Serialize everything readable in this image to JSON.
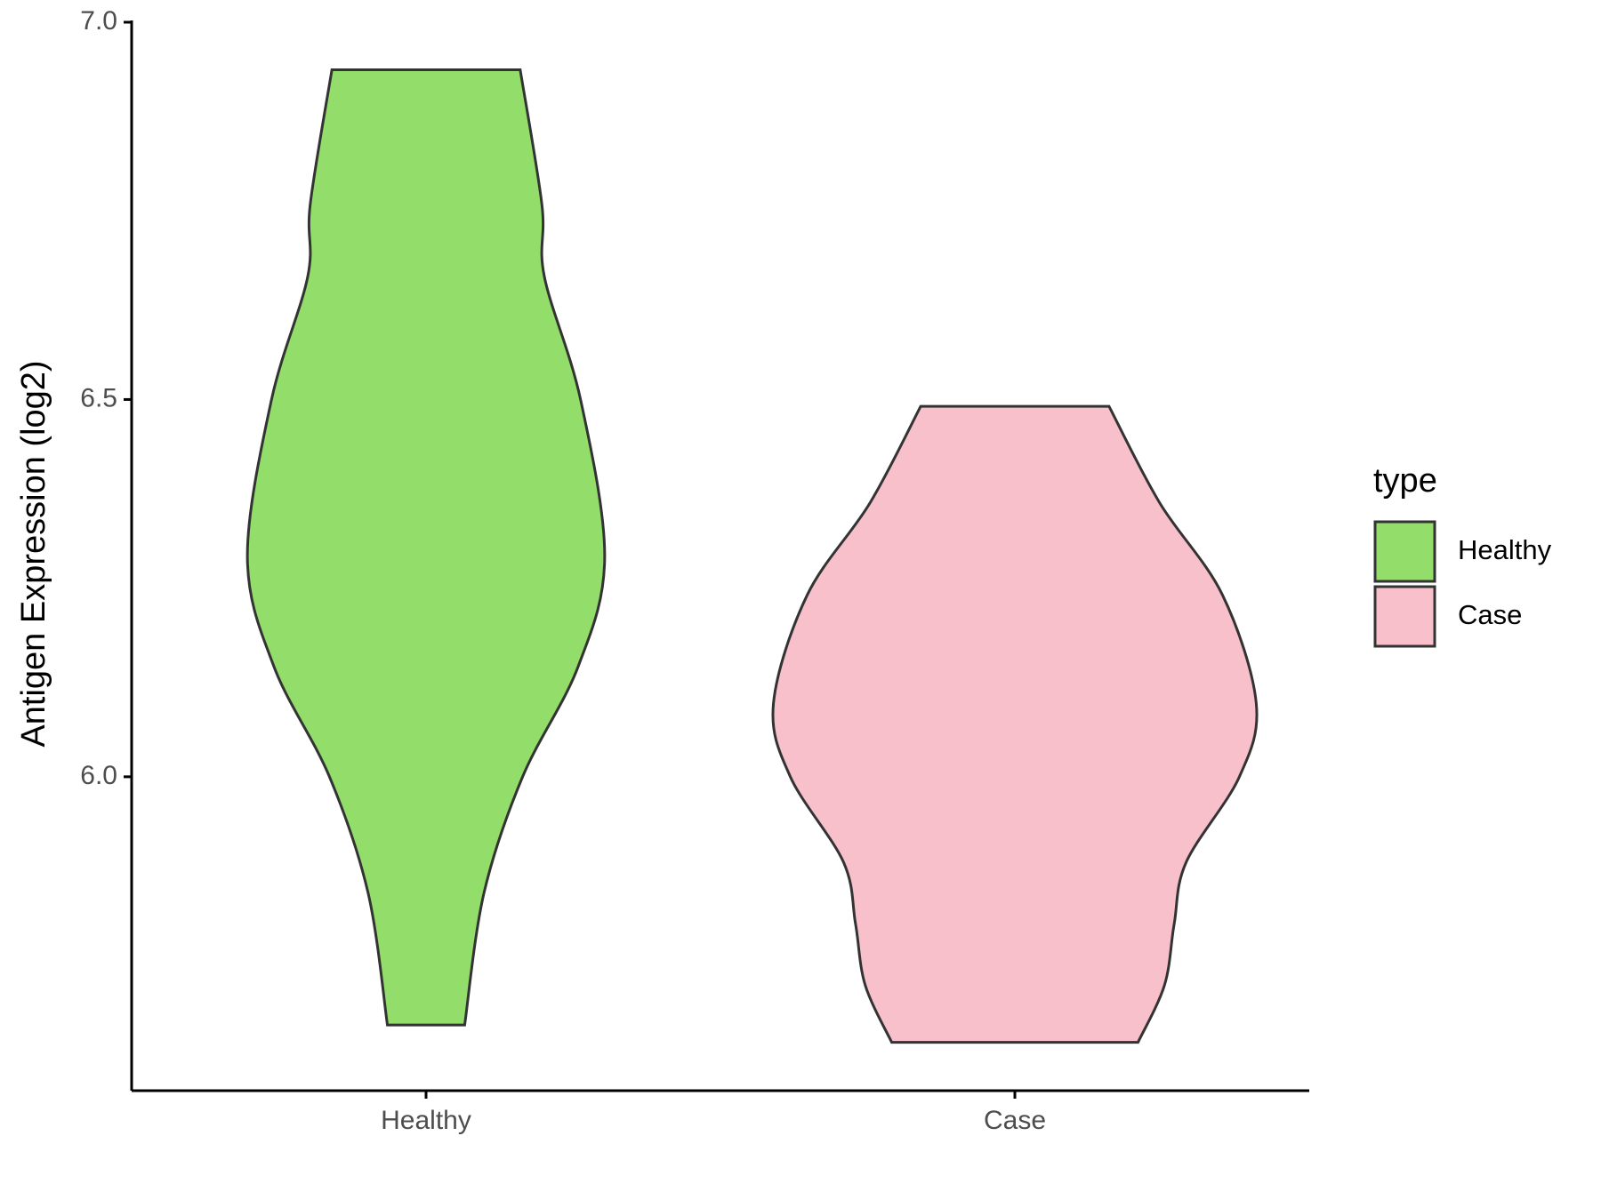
{
  "chart_data": {
    "type": "violin",
    "y_label": "Antigen Expression (log2)",
    "legend_title": "type",
    "categories": [
      "Healthy",
      "Case"
    ],
    "series": [
      {
        "name": "Healthy",
        "color": "#93dd6a",
        "y": [
          6.937,
          6.758,
          6.663,
          6.5,
          6.291,
          6.146,
          6.0,
          5.846,
          5.671
        ],
        "width": [
          0.39,
          0.48,
          0.49,
          0.64,
          0.74,
          0.63,
          0.4,
          0.24,
          0.16
        ]
      },
      {
        "name": "Case",
        "color": "#f8c0cb",
        "y": [
          6.491,
          6.363,
          6.241,
          6.097,
          6.0,
          5.887,
          5.805,
          5.724,
          5.648
        ],
        "width": [
          0.39,
          0.6,
          0.86,
          1.0,
          0.93,
          0.71,
          0.66,
          0.62,
          0.51
        ]
      }
    ],
    "ylim": [
      5.584,
      7.0
    ],
    "yticks": [
      {
        "value": 6,
        "label": "6.0"
      },
      6.5,
      {
        "value": 7,
        "label": "7.0"
      }
    ],
    "legend_position": "right"
  }
}
